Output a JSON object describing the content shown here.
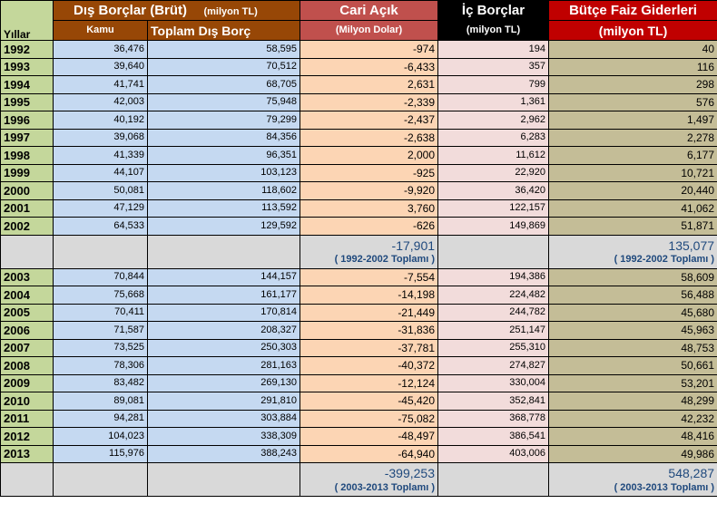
{
  "header": {
    "years_label": "Yıllar",
    "dis_borclar_title": "Dış Borçlar (Brüt)",
    "dis_borclar_unit": "(milyon TL)",
    "kamu_label": "Kamu",
    "toplam_label": "Toplam Dış Borç",
    "cari_title": "Cari Açık",
    "cari_unit": "(Milyon Dolar)",
    "ic_title": "İç Borçlar",
    "ic_unit": "(milyon TL)",
    "butce_title": "Bütçe Faiz Giderleri",
    "butce_unit": "(milyon TL)"
  },
  "rows_a": [
    {
      "year": "1992",
      "kamu": "36,476",
      "toplam": "58,595",
      "cari": "-974",
      "ic": "194",
      "butce": "40"
    },
    {
      "year": "1993",
      "kamu": "39,640",
      "toplam": "70,512",
      "cari": "-6,433",
      "ic": "357",
      "butce": "116"
    },
    {
      "year": "1994",
      "kamu": "41,741",
      "toplam": "68,705",
      "cari": "2,631",
      "ic": "799",
      "butce": "298"
    },
    {
      "year": "1995",
      "kamu": "42,003",
      "toplam": "75,948",
      "cari": "-2,339",
      "ic": "1,361",
      "butce": "576"
    },
    {
      "year": "1996",
      "kamu": "40,192",
      "toplam": "79,299",
      "cari": "-2,437",
      "ic": "2,962",
      "butce": "1,497"
    },
    {
      "year": "1997",
      "kamu": "39,068",
      "toplam": "84,356",
      "cari": "-2,638",
      "ic": "6,283",
      "butce": "2,278"
    },
    {
      "year": "1998",
      "kamu": "41,339",
      "toplam": "96,351",
      "cari": "2,000",
      "ic": "11,612",
      "butce": "6,177"
    },
    {
      "year": "1999",
      "kamu": "44,107",
      "toplam": "103,123",
      "cari": "-925",
      "ic": "22,920",
      "butce": "10,721"
    },
    {
      "year": "2000",
      "kamu": "50,081",
      "toplam": "118,602",
      "cari": "-9,920",
      "ic": "36,420",
      "butce": "20,440"
    },
    {
      "year": "2001",
      "kamu": "47,129",
      "toplam": "113,592",
      "cari": "3,760",
      "ic": "122,157",
      "butce": "41,062"
    },
    {
      "year": "2002",
      "kamu": "64,533",
      "toplam": "129,592",
      "cari": "-626",
      "ic": "149,869",
      "butce": "51,871"
    }
  ],
  "summary_a": {
    "cari_total": "-17,901",
    "butce_total": "135,077",
    "label": "( 1992-2002 Toplamı )"
  },
  "rows_b": [
    {
      "year": "2003",
      "kamu": "70,844",
      "toplam": "144,157",
      "cari": "-7,554",
      "ic": "194,386",
      "butce": "58,609"
    },
    {
      "year": "2004",
      "kamu": "75,668",
      "toplam": "161,177",
      "cari": "-14,198",
      "ic": "224,482",
      "butce": "56,488"
    },
    {
      "year": "2005",
      "kamu": "70,411",
      "toplam": "170,814",
      "cari": "-21,449",
      "ic": "244,782",
      "butce": "45,680"
    },
    {
      "year": "2006",
      "kamu": "71,587",
      "toplam": "208,327",
      "cari": "-31,836",
      "ic": "251,147",
      "butce": "45,963"
    },
    {
      "year": "2007",
      "kamu": "73,525",
      "toplam": "250,303",
      "cari": "-37,781",
      "ic": "255,310",
      "butce": "48,753"
    },
    {
      "year": "2008",
      "kamu": "78,306",
      "toplam": "281,163",
      "cari": "-40,372",
      "ic": "274,827",
      "butce": "50,661"
    },
    {
      "year": "2009",
      "kamu": "83,482",
      "toplam": "269,130",
      "cari": "-12,124",
      "ic": "330,004",
      "butce": "53,201"
    },
    {
      "year": "2010",
      "kamu": "89,081",
      "toplam": "291,810",
      "cari": "-45,420",
      "ic": "352,841",
      "butce": "48,299"
    },
    {
      "year": "2011",
      "kamu": "94,281",
      "toplam": "303,884",
      "cari": "-75,082",
      "ic": "368,778",
      "butce": "42,232"
    },
    {
      "year": "2012",
      "kamu": "104,023",
      "toplam": "338,309",
      "cari": "-48,497",
      "ic": "386,541",
      "butce": "48,416"
    },
    {
      "year": "2013",
      "kamu": "115,976",
      "toplam": "388,243",
      "cari": "-64,940",
      "ic": "403,006",
      "butce": "49,986"
    }
  ],
  "summary_b": {
    "cari_total": "-399,253",
    "butce_total": "548,287",
    "label": "( 2003-2013 Toplamı )"
  },
  "colors": {
    "year_bg": "#c4d79b",
    "dis_header_bg": "#974706",
    "cari_header_bg": "#c0504d",
    "ic_header_bg": "#000000",
    "butce_header_bg": "#c00000",
    "blue_cells": "#c5d9f1",
    "cari_cells": "#fcd5b4",
    "ic_cells": "#f2dcdb",
    "butce_cells": "#c4bd97",
    "summary_bg": "#d9d9d9",
    "summary_text": "#1f497d"
  }
}
